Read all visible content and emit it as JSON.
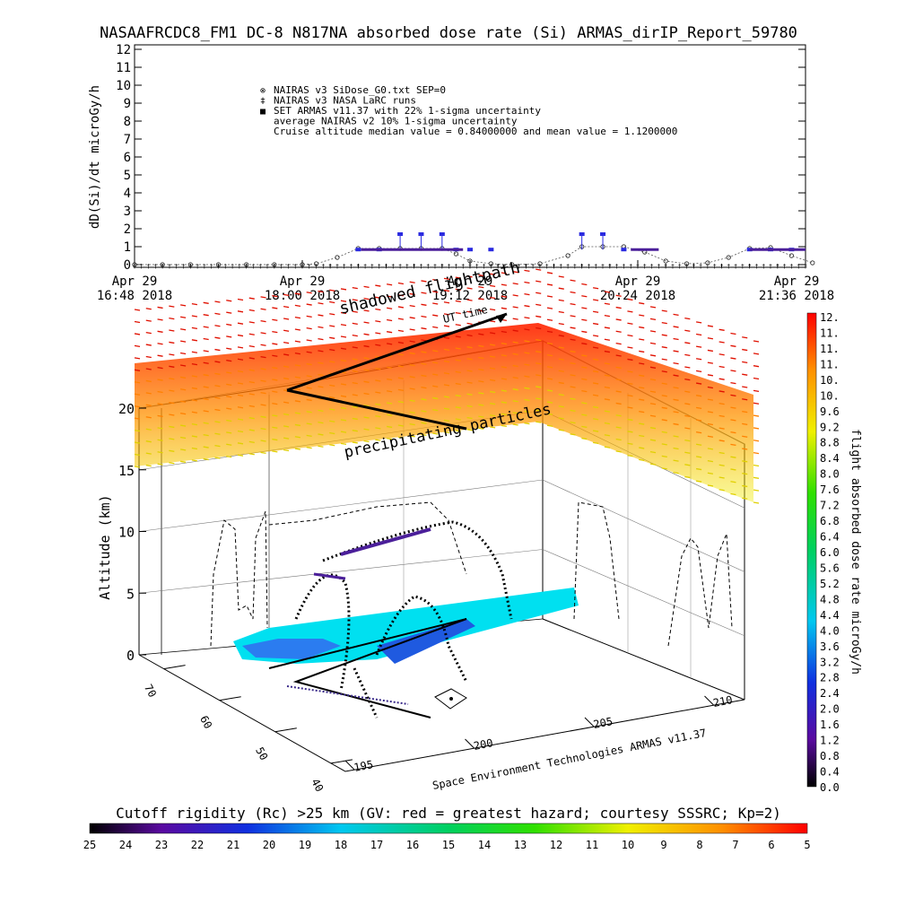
{
  "title": "NASAAFRCDC8_FM1 DC-8   N817NA absorbed dose rate (Si) ARMAS_dirIP_Report_59780",
  "chart_data": [
    {
      "type": "scatter",
      "ylabel": "dD(Si)/dt microGy/h",
      "ylim": [
        0,
        12
      ],
      "yticks": [
        "0",
        "1",
        "2",
        "3",
        "4",
        "5",
        "6",
        "7",
        "8",
        "9",
        "10",
        "11",
        "12"
      ],
      "x_tick_labels": [
        {
          "day": "Apr 29",
          "time": "16:48 2018"
        },
        {
          "day": "Apr 29",
          "time": "18:00 2018"
        },
        {
          "day": "Apr 29",
          "time": "19:12 2018"
        },
        {
          "day": "Apr 29",
          "time": "20:24 2018"
        },
        {
          "day": "Apr 29",
          "time": "21:36 2018"
        }
      ],
      "legend": [
        {
          "symbol": "⊗",
          "text": "NAIRAS v3 SiDose_G0.txt SEP=0"
        },
        {
          "symbol": "‡",
          "text": "NAIRAS v3 NASA LaRC runs"
        },
        {
          "symbol": "■",
          "text": "SET ARMAS v11.37 with 22% 1-sigma uncertainty",
          "color": "#2a2ae0"
        },
        {
          "symbol": "",
          "text": "average NAIRAS v2 10% 1-sigma uncertainty"
        },
        {
          "symbol": "",
          "text": "Cruise altitude median value = 0.84000000 and mean value = 1.1200000"
        }
      ],
      "legend_placement": "top-center",
      "x_hours": [
        16.8,
        17.0,
        17.2,
        17.4,
        17.6,
        17.8,
        18.0,
        18.1,
        18.25,
        18.4,
        18.55,
        18.7,
        18.85,
        19.0,
        19.1,
        19.2,
        19.35,
        19.5,
        19.7,
        19.9,
        20.0,
        20.15,
        20.3,
        20.45,
        20.6,
        20.75,
        20.9,
        21.05,
        21.2,
        21.35,
        21.5,
        21.65
      ],
      "series": [
        {
          "name": "NAIRAS v3 SiDose_G0.txt SEP=0",
          "color": "#222222",
          "values": [
            0,
            0,
            0,
            0,
            0,
            0,
            0,
            0.05,
            0.4,
            0.9,
            0.9,
            0.9,
            0.9,
            0.9,
            0.6,
            0.2,
            0.05,
            0,
            0.05,
            0.5,
            1.0,
            1.0,
            1.0,
            0.7,
            0.2,
            0.05,
            0.1,
            0.4,
            0.9,
            0.95,
            0.5,
            0.1
          ]
        },
        {
          "name": "SET ARMAS v11.37 with 22% 1-sigma uncertainty",
          "color": "#2a2ae0",
          "values": [
            null,
            null,
            null,
            null,
            null,
            null,
            null,
            null,
            null,
            0.84,
            0.84,
            1.7,
            1.7,
            1.7,
            0.84,
            0.84,
            0.84,
            null,
            null,
            null,
            1.7,
            1.7,
            0.84,
            null,
            null,
            null,
            null,
            null,
            0.84,
            0.84,
            0.84,
            null
          ]
        }
      ]
    },
    {
      "type": "scatter",
      "ylabel": "Altitude (km)",
      "zticks": [
        "0",
        "5",
        "10",
        "15",
        "20"
      ],
      "lat_ticks": [
        "40",
        "50",
        "60",
        "70"
      ],
      "lon_ticks": [
        "195",
        "200",
        "205",
        "210"
      ],
      "annotations": [
        "shadowed flightpath",
        "UT time",
        "precipitating particles"
      ],
      "credit": "Space Environment Technologies ARMAS v11.37"
    }
  ],
  "colorbar_right": {
    "title": "flight absorbed dose rate microGy/h",
    "labels": [
      "12.",
      "11.",
      "11.",
      "11.",
      "10.",
      "10.",
      "9.6",
      "9.2",
      "8.8",
      "8.4",
      "8.0",
      "7.6",
      "7.2",
      "6.8",
      "6.4",
      "6.0",
      "5.6",
      "5.2",
      "4.8",
      "4.4",
      "4.0",
      "3.6",
      "3.2",
      "2.8",
      "2.4",
      "2.0",
      "1.6",
      "1.2",
      "0.8",
      "0.4",
      "0.0"
    ]
  },
  "colorbar_bottom": {
    "title": "Cutoff rigidity (Rc) >25 km (GV: red = greatest hazard; courtesy SSSRC; Kp=2)",
    "labels": [
      "25",
      "24",
      "23",
      "22",
      "21",
      "20",
      "19",
      "18",
      "17",
      "16",
      "15",
      "14",
      "13",
      "12",
      "11",
      "10",
      "9",
      "8",
      "7",
      "6",
      "5"
    ]
  }
}
